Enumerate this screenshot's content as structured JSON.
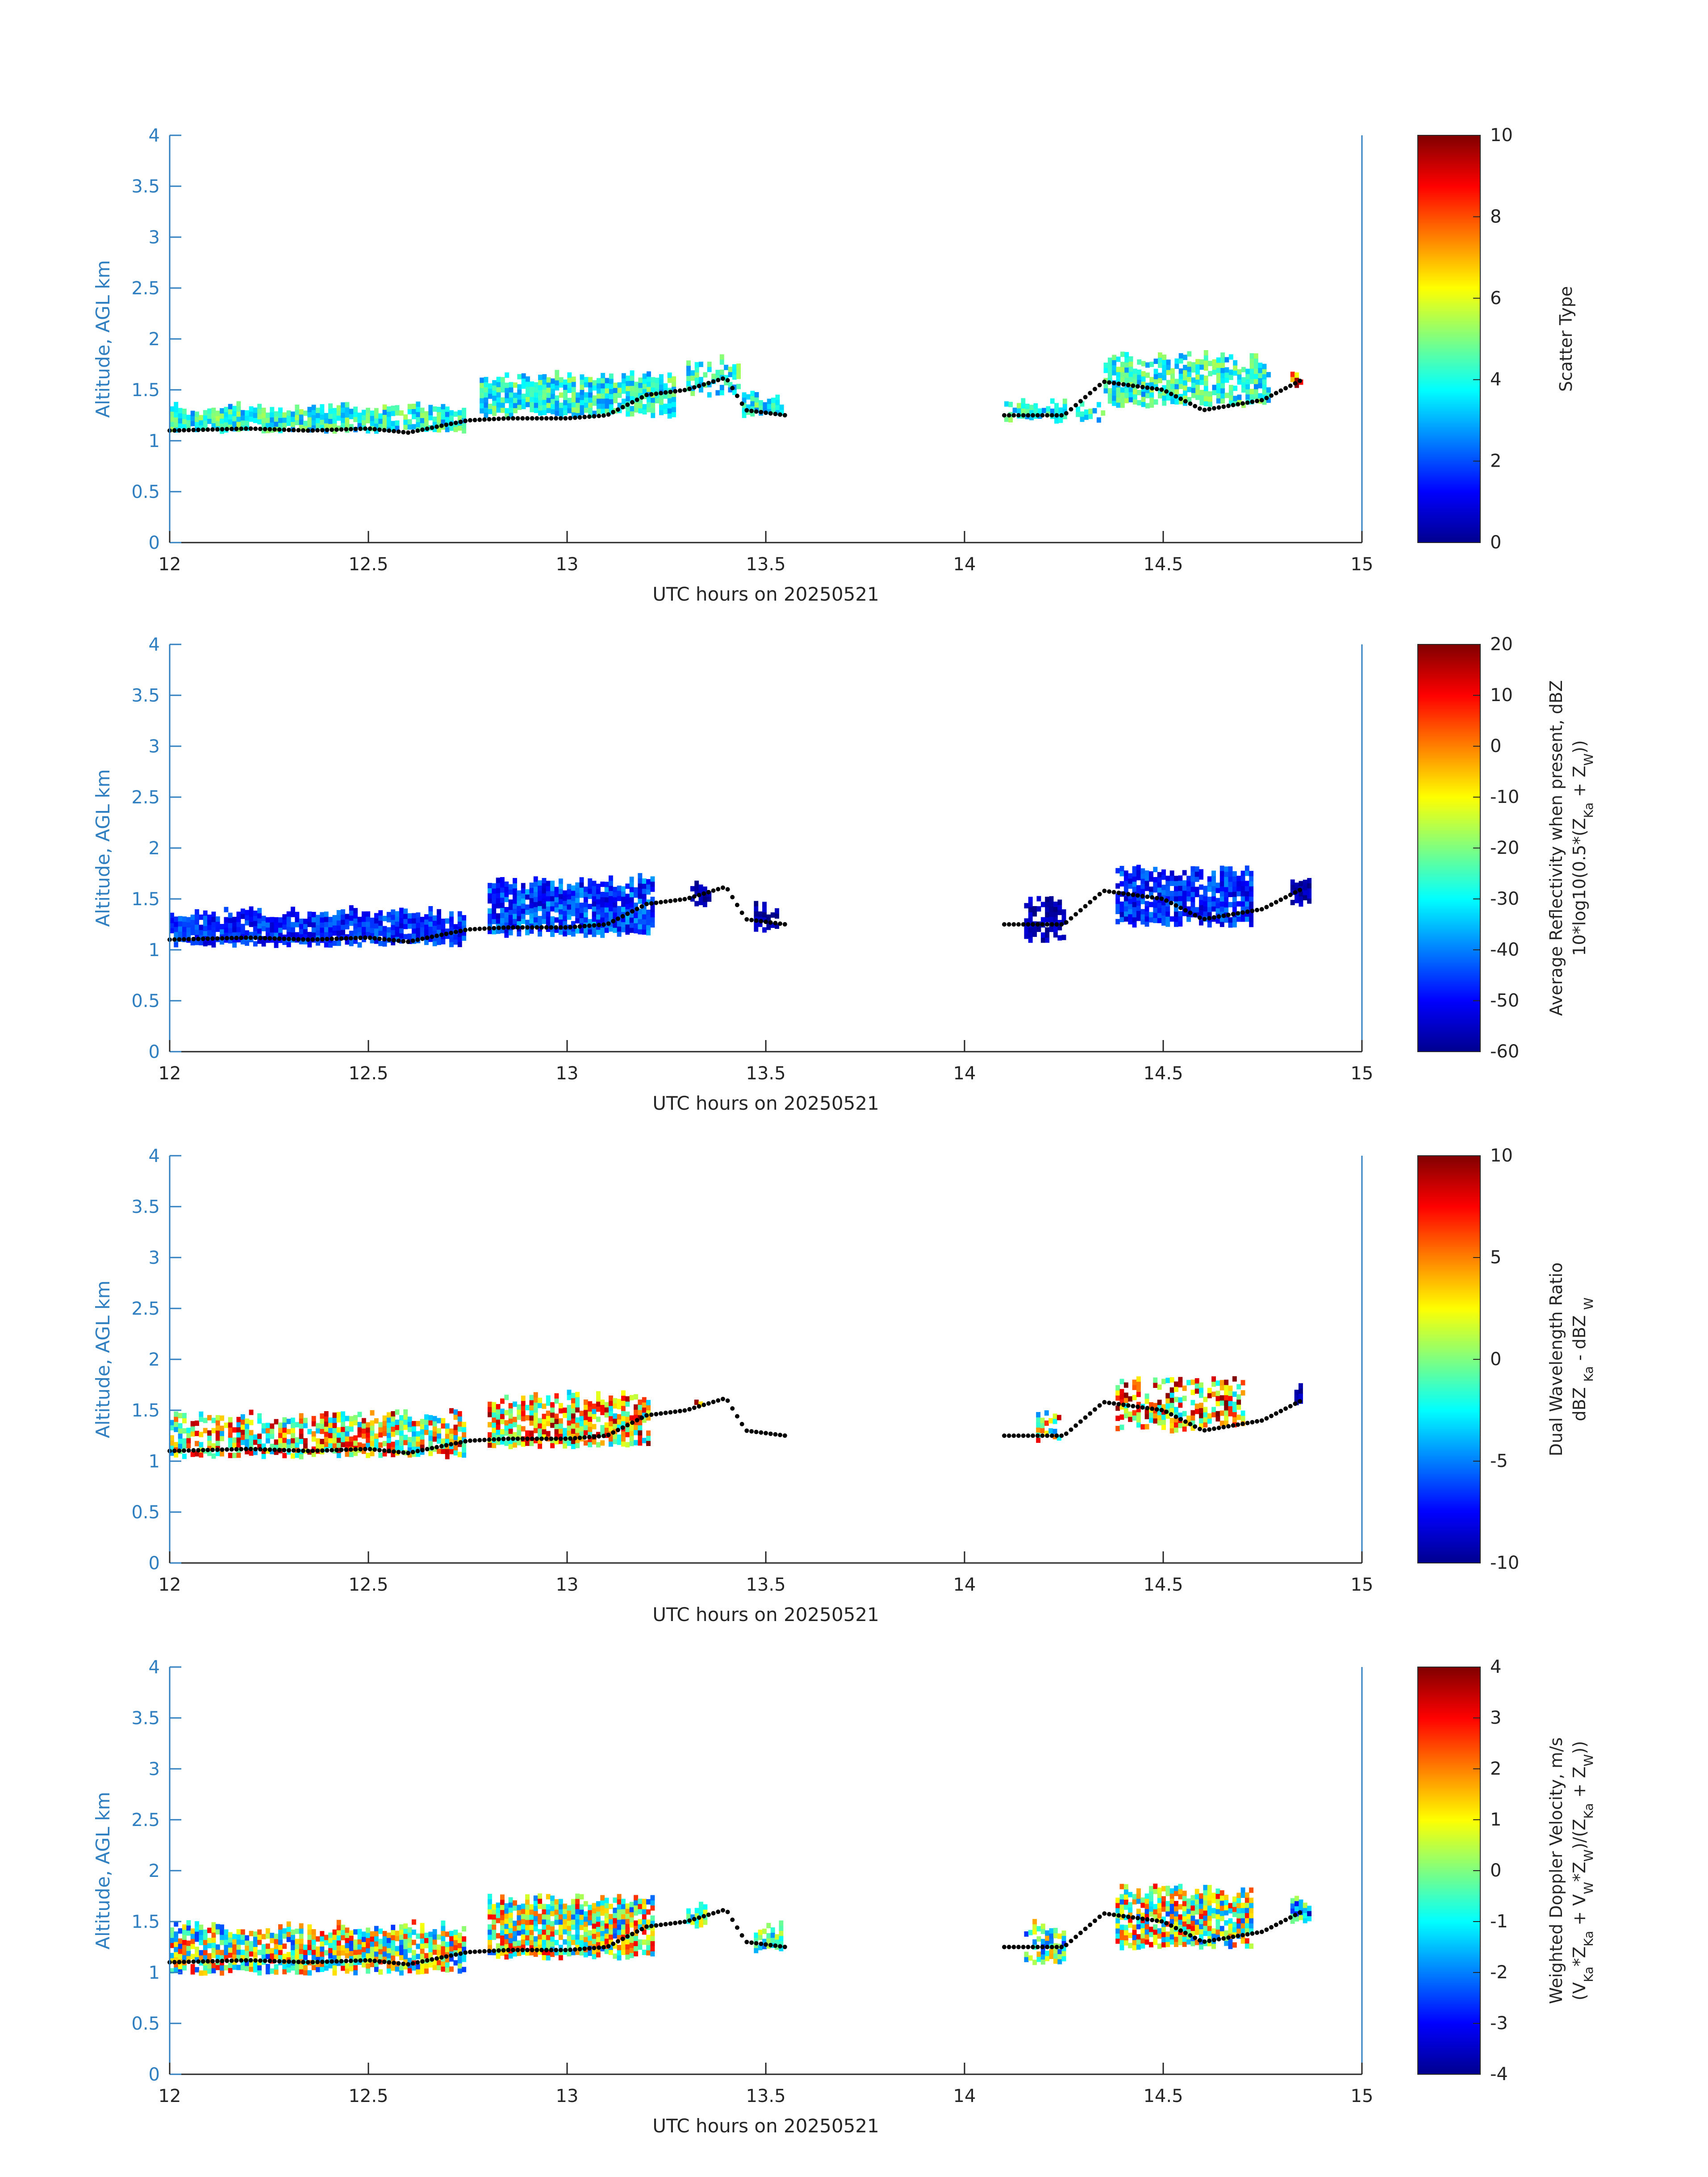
{
  "figure": {
    "colors": {
      "axis": "#2f7fc1",
      "text": "#262626",
      "background": "#ffffff"
    },
    "colormap": "jet",
    "panels": [
      {
        "id": "scatter-type",
        "cbar_label_lines": [
          "Scatter Type"
        ]
      },
      {
        "id": "reflectivity",
        "cbar_label_lines": [
          "Average Reflectivity when present, dBZ",
          "10*log10(0.5*(Z",
          "Ka",
          " + Z",
          "W",
          "))"
        ]
      },
      {
        "id": "dwr",
        "cbar_label_lines": [
          "Dual Wavelength Ratio",
          "dBZ ",
          "Ka",
          " - dBZ ",
          "W"
        ]
      },
      {
        "id": "doppler",
        "cbar_label_lines": [
          "Weighted Doppler Velocity, m/s",
          "(V",
          "Ka",
          "*Z",
          "Ka",
          " + V",
          "W",
          "*Z",
          "W",
          ")/(Z",
          "Ka",
          " + Z",
          "W",
          "))"
        ]
      }
    ]
  },
  "chart_data": [
    {
      "type": "heatmap",
      "title": "",
      "xlabel": "UTC hours on 20250521",
      "ylabel": "Altitude, AGL km",
      "xlim": [
        12,
        15
      ],
      "ylim": [
        0,
        4
      ],
      "xticks": [
        "12",
        "12.5",
        "13",
        "13.5",
        "14",
        "14.5",
        "15"
      ],
      "yticks": [
        "0",
        "0.5",
        "1",
        "1.5",
        "2",
        "2.5",
        "3",
        "3.5",
        "4"
      ],
      "colorbar": {
        "label": "Scatter Type",
        "min": 0,
        "max": 10,
        "ticks": [
          "0",
          "2",
          "4",
          "6",
          "8",
          "10"
        ]
      },
      "cloud_segments": [
        {
          "t_start": 12.0,
          "t_end": 12.74,
          "base_km": 1.1,
          "top_km": 1.3,
          "value": 4.0,
          "spread": 0.15,
          "fill": 0.92
        },
        {
          "t_start": 12.78,
          "t_end": 13.27,
          "base_km": 1.25,
          "top_km": 1.6,
          "value": 4.0,
          "spread": 0.15,
          "fill": 0.9
        },
        {
          "t_start": 13.3,
          "t_end": 13.43,
          "base_km": 1.45,
          "top_km": 1.75,
          "value": 4.0,
          "spread": 0.15,
          "fill": 0.6
        },
        {
          "t_start": 13.44,
          "t_end": 13.54,
          "base_km": 1.25,
          "top_km": 1.4,
          "value": 4.0,
          "spread": 0.15,
          "fill": 0.85
        },
        {
          "t_start": 14.1,
          "t_end": 14.25,
          "base_km": 1.2,
          "top_km": 1.35,
          "value": 4.0,
          "spread": 0.15,
          "fill": 0.85
        },
        {
          "t_start": 14.28,
          "t_end": 14.35,
          "base_km": 1.2,
          "top_km": 1.35,
          "value": 4.0,
          "spread": 0.15,
          "fill": 0.6
        },
        {
          "t_start": 14.35,
          "t_end": 14.76,
          "base_km": 1.35,
          "top_km": 1.8,
          "value": 4.0,
          "spread": 0.15,
          "fill": 0.8
        },
        {
          "t_start": 14.82,
          "t_end": 14.86,
          "base_km": 1.55,
          "top_km": 1.62,
          "value": 8.0,
          "spread": 0.2,
          "fill": 0.9
        }
      ],
      "cloud_base_km": [
        [
          12.0,
          1.1
        ],
        [
          12.2,
          1.12
        ],
        [
          12.35,
          1.1
        ],
        [
          12.5,
          1.12
        ],
        [
          12.6,
          1.08
        ],
        [
          12.75,
          1.2
        ],
        [
          12.85,
          1.22
        ],
        [
          13.0,
          1.22
        ],
        [
          13.1,
          1.25
        ],
        [
          13.2,
          1.45
        ],
        [
          13.3,
          1.5
        ],
        [
          13.4,
          1.62
        ],
        [
          13.45,
          1.3
        ],
        [
          13.55,
          1.25
        ],
        [
          14.1,
          1.25
        ],
        [
          14.25,
          1.25
        ],
        [
          14.35,
          1.58
        ],
        [
          14.5,
          1.5
        ],
        [
          14.6,
          1.3
        ],
        [
          14.75,
          1.4
        ],
        [
          14.85,
          1.6
        ]
      ]
    },
    {
      "type": "heatmap",
      "title": "",
      "xlabel": "UTC hours on 20250521",
      "ylabel": "Altitude, AGL km",
      "xlim": [
        12,
        15
      ],
      "ylim": [
        0,
        4
      ],
      "xticks": [
        "12",
        "12.5",
        "13",
        "13.5",
        "14",
        "14.5",
        "15"
      ],
      "yticks": [
        "0",
        "0.5",
        "1",
        "1.5",
        "2",
        "2.5",
        "3",
        "3.5",
        "4"
      ],
      "colorbar": {
        "label": "Average Reflectivity when present, dBZ",
        "min": -60,
        "max": 20,
        "ticks": [
          "-60",
          "-50",
          "-40",
          "-30",
          "-20",
          "-10",
          "0",
          "10",
          "20"
        ]
      },
      "cloud_segments": [
        {
          "t_start": 12.0,
          "t_end": 12.74,
          "base_km": 1.05,
          "top_km": 1.35,
          "value": -47,
          "spread": 0.09,
          "fill": 0.92
        },
        {
          "t_start": 12.8,
          "t_end": 13.22,
          "base_km": 1.15,
          "top_km": 1.65,
          "value": -45,
          "spread": 0.12,
          "fill": 0.9
        },
        {
          "t_start": 13.31,
          "t_end": 13.36,
          "base_km": 1.45,
          "top_km": 1.6,
          "value": -57,
          "spread": 0.05,
          "fill": 0.9
        },
        {
          "t_start": 13.47,
          "t_end": 13.53,
          "base_km": 1.2,
          "top_km": 1.4,
          "value": -57,
          "spread": 0.05,
          "fill": 0.9
        },
        {
          "t_start": 14.15,
          "t_end": 14.25,
          "base_km": 1.1,
          "top_km": 1.45,
          "value": -56,
          "spread": 0.05,
          "fill": 0.7
        },
        {
          "t_start": 14.38,
          "t_end": 14.72,
          "base_km": 1.25,
          "top_km": 1.75,
          "value": -47,
          "spread": 0.1,
          "fill": 0.85
        },
        {
          "t_start": 14.82,
          "t_end": 14.87,
          "base_km": 1.45,
          "top_km": 1.7,
          "value": -57,
          "spread": 0.05,
          "fill": 0.9
        }
      ],
      "cloud_base_km": [
        [
          12.0,
          1.1
        ],
        [
          12.2,
          1.12
        ],
        [
          12.35,
          1.1
        ],
        [
          12.5,
          1.12
        ],
        [
          12.6,
          1.08
        ],
        [
          12.75,
          1.2
        ],
        [
          12.85,
          1.22
        ],
        [
          13.0,
          1.22
        ],
        [
          13.1,
          1.25
        ],
        [
          13.2,
          1.45
        ],
        [
          13.3,
          1.5
        ],
        [
          13.4,
          1.62
        ],
        [
          13.45,
          1.3
        ],
        [
          13.55,
          1.25
        ],
        [
          14.1,
          1.25
        ],
        [
          14.25,
          1.25
        ],
        [
          14.35,
          1.58
        ],
        [
          14.5,
          1.5
        ],
        [
          14.6,
          1.3
        ],
        [
          14.75,
          1.4
        ],
        [
          14.85,
          1.6
        ]
      ]
    },
    {
      "type": "heatmap",
      "title": "",
      "xlabel": "UTC hours on 20250521",
      "ylabel": "Altitude, AGL km",
      "xlim": [
        12,
        15
      ],
      "ylim": [
        0,
        4
      ],
      "xticks": [
        "12",
        "12.5",
        "13",
        "13.5",
        "14",
        "14.5",
        "15"
      ],
      "yticks": [
        "0",
        "0.5",
        "1",
        "1.5",
        "2",
        "2.5",
        "3",
        "3.5",
        "4"
      ],
      "colorbar": {
        "label": "Dual Wavelength Ratio",
        "min": -10,
        "max": 10,
        "ticks": [
          "-10",
          "-5",
          "0",
          "5",
          "10"
        ]
      },
      "cloud_segments": [
        {
          "t_start": 12.0,
          "t_end": 12.74,
          "base_km": 1.05,
          "top_km": 1.42,
          "value": 2.5,
          "spread": 0.35,
          "fill": 0.75
        },
        {
          "t_start": 12.8,
          "t_end": 13.2,
          "base_km": 1.15,
          "top_km": 1.6,
          "value": 3.0,
          "spread": 0.35,
          "fill": 0.78
        },
        {
          "t_start": 13.32,
          "t_end": 13.34,
          "base_km": 1.55,
          "top_km": 1.6,
          "value": 6.0,
          "spread": 0.2,
          "fill": 0.9
        },
        {
          "t_start": 14.18,
          "t_end": 14.24,
          "base_km": 1.2,
          "top_km": 1.42,
          "value": 2.0,
          "spread": 0.35,
          "fill": 0.7
        },
        {
          "t_start": 14.38,
          "t_end": 14.7,
          "base_km": 1.3,
          "top_km": 1.78,
          "value": 3.5,
          "spread": 0.35,
          "fill": 0.6
        },
        {
          "t_start": 14.83,
          "t_end": 14.85,
          "base_km": 1.55,
          "top_km": 1.68,
          "value": -9.0,
          "spread": 0.05,
          "fill": 1.0
        }
      ],
      "cloud_base_km": [
        [
          12.0,
          1.1
        ],
        [
          12.2,
          1.12
        ],
        [
          12.35,
          1.1
        ],
        [
          12.5,
          1.12
        ],
        [
          12.6,
          1.08
        ],
        [
          12.75,
          1.2
        ],
        [
          12.85,
          1.22
        ],
        [
          13.0,
          1.22
        ],
        [
          13.1,
          1.25
        ],
        [
          13.2,
          1.45
        ],
        [
          13.3,
          1.5
        ],
        [
          13.4,
          1.62
        ],
        [
          13.45,
          1.3
        ],
        [
          13.55,
          1.25
        ],
        [
          14.1,
          1.25
        ],
        [
          14.25,
          1.25
        ],
        [
          14.35,
          1.58
        ],
        [
          14.5,
          1.5
        ],
        [
          14.6,
          1.3
        ],
        [
          14.75,
          1.4
        ],
        [
          14.85,
          1.6
        ]
      ]
    },
    {
      "type": "heatmap",
      "title": "",
      "xlabel": "UTC hours on 20250521",
      "ylabel": "Altitude, AGL km",
      "xlim": [
        12,
        15
      ],
      "ylim": [
        0,
        4
      ],
      "xticks": [
        "12",
        "12.5",
        "13",
        "13.5",
        "14",
        "14.5",
        "15"
      ],
      "yticks": [
        "0",
        "0.5",
        "1",
        "1.5",
        "2",
        "2.5",
        "3",
        "3.5",
        "4"
      ],
      "colorbar": {
        "label": "Weighted Doppler Velocity, m/s",
        "min": -4,
        "max": 4,
        "ticks": [
          "-4",
          "-3",
          "-2",
          "-1",
          "0",
          "1",
          "2",
          "3",
          "4"
        ]
      },
      "cloud_segments": [
        {
          "t_start": 12.0,
          "t_end": 12.74,
          "base_km": 1.0,
          "top_km": 1.42,
          "value": 0.2,
          "spread": 0.35,
          "fill": 0.85
        },
        {
          "t_start": 12.8,
          "t_end": 13.22,
          "base_km": 1.15,
          "top_km": 1.7,
          "value": 0.4,
          "spread": 0.35,
          "fill": 0.88
        },
        {
          "t_start": 13.3,
          "t_end": 13.35,
          "base_km": 1.45,
          "top_km": 1.6,
          "value": -0.4,
          "spread": 0.2,
          "fill": 0.9
        },
        {
          "t_start": 13.47,
          "t_end": 13.54,
          "base_km": 1.22,
          "top_km": 1.42,
          "value": -0.6,
          "spread": 0.2,
          "fill": 0.9
        },
        {
          "t_start": 14.15,
          "t_end": 14.25,
          "base_km": 1.1,
          "top_km": 1.42,
          "value": -0.4,
          "spread": 0.3,
          "fill": 0.7
        },
        {
          "t_start": 14.38,
          "t_end": 14.72,
          "base_km": 1.25,
          "top_km": 1.78,
          "value": 0.4,
          "spread": 0.35,
          "fill": 0.85
        },
        {
          "t_start": 14.82,
          "t_end": 14.87,
          "base_km": 1.5,
          "top_km": 1.7,
          "value": -1.2,
          "spread": 0.3,
          "fill": 0.9
        }
      ],
      "cloud_base_km": [
        [
          12.0,
          1.1
        ],
        [
          12.2,
          1.12
        ],
        [
          12.35,
          1.1
        ],
        [
          12.5,
          1.12
        ],
        [
          12.6,
          1.08
        ],
        [
          12.75,
          1.2
        ],
        [
          12.85,
          1.22
        ],
        [
          13.0,
          1.22
        ],
        [
          13.1,
          1.25
        ],
        [
          13.2,
          1.45
        ],
        [
          13.3,
          1.5
        ],
        [
          13.4,
          1.62
        ],
        [
          13.45,
          1.3
        ],
        [
          13.55,
          1.25
        ],
        [
          14.1,
          1.25
        ],
        [
          14.25,
          1.25
        ],
        [
          14.35,
          1.58
        ],
        [
          14.5,
          1.5
        ],
        [
          14.6,
          1.3
        ],
        [
          14.75,
          1.4
        ],
        [
          14.85,
          1.6
        ]
      ]
    }
  ]
}
